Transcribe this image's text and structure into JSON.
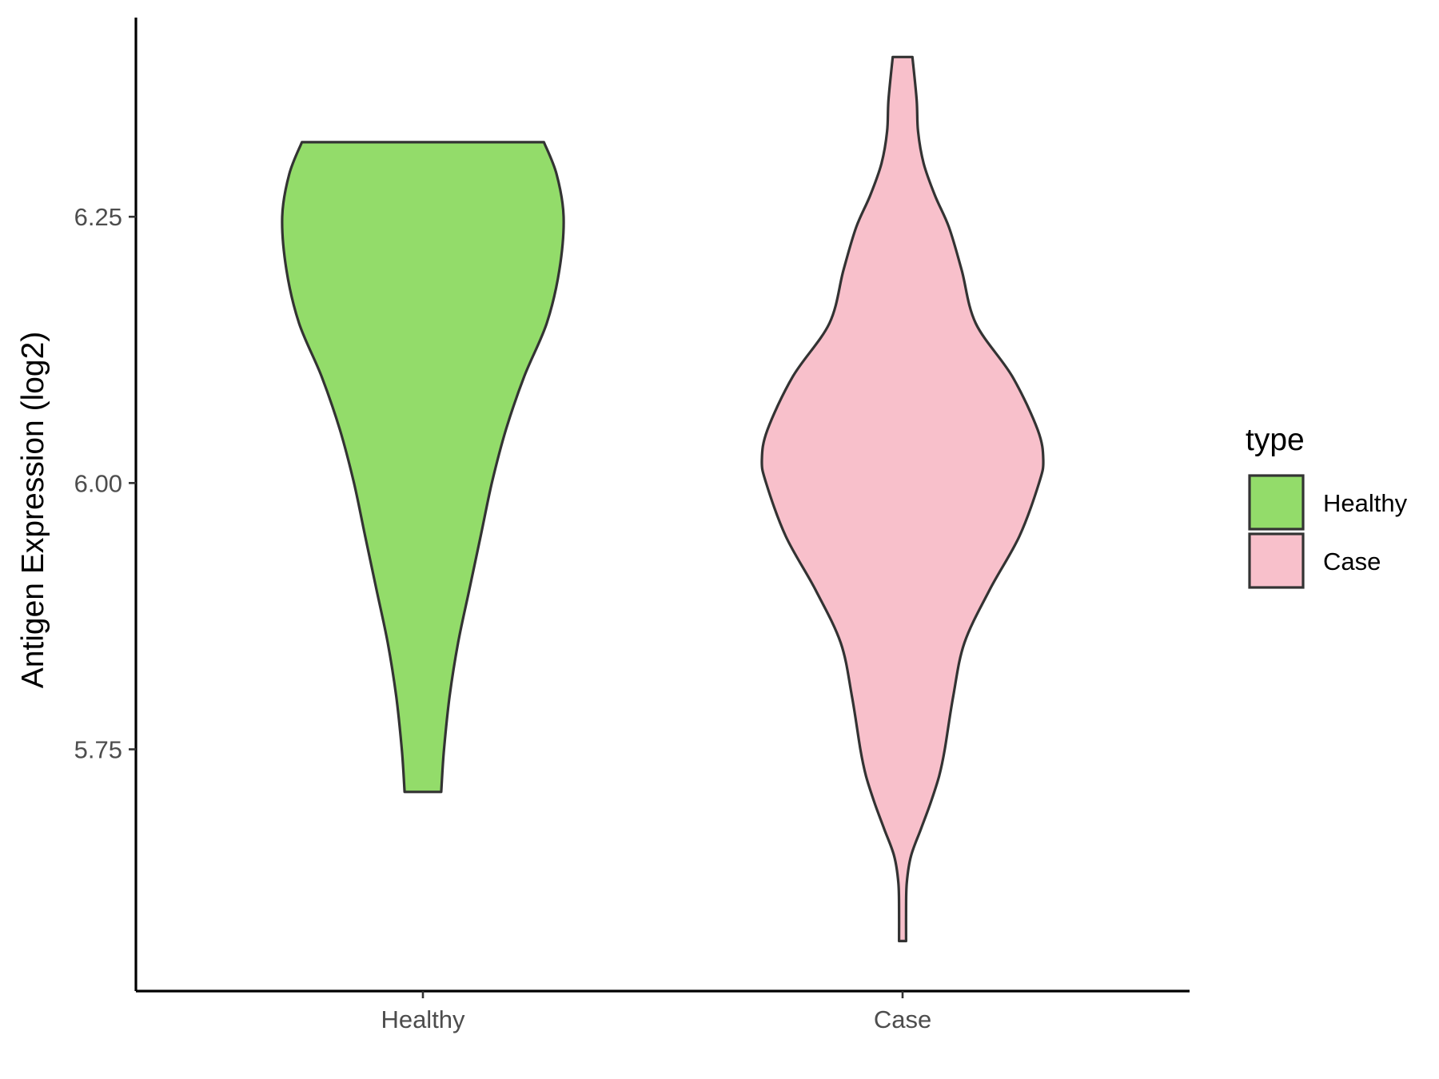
{
  "chart_data": {
    "type": "violin",
    "title": "",
    "xlabel": "",
    "ylabel": "Antigen Expression (log2)",
    "categories": [
      "Healthy",
      "Case"
    ],
    "ylim": [
      5.523,
      6.437
    ],
    "yticks": [
      5.75,
      6.0,
      6.25
    ],
    "ytick_labels": [
      "5.75",
      "6.00",
      "6.25"
    ],
    "grid": false,
    "legend": {
      "title": "type",
      "position": "right",
      "entries": [
        {
          "label": "Healthy",
          "color": "#93DC6A"
        },
        {
          "label": "Case",
          "color": "#F8C0CB"
        }
      ]
    },
    "series": [
      {
        "name": "Healthy",
        "color": "#93DC6A",
        "min": 5.71,
        "max": 6.32,
        "density": [
          [
            5.71,
            0.13
          ],
          [
            5.75,
            0.15
          ],
          [
            5.8,
            0.19
          ],
          [
            5.85,
            0.25
          ],
          [
            5.9,
            0.33
          ],
          [
            5.95,
            0.41
          ],
          [
            6.0,
            0.49
          ],
          [
            6.05,
            0.59
          ],
          [
            6.1,
            0.72
          ],
          [
            6.15,
            0.88
          ],
          [
            6.2,
            0.97
          ],
          [
            6.25,
            1.0
          ],
          [
            6.29,
            0.95
          ],
          [
            6.32,
            0.86
          ]
        ]
      },
      {
        "name": "Case",
        "color": "#F8C0CB",
        "min": 5.57,
        "max": 6.4,
        "density": [
          [
            5.57,
            0.025
          ],
          [
            5.6,
            0.025
          ],
          [
            5.625,
            0.03
          ],
          [
            5.65,
            0.06
          ],
          [
            5.675,
            0.13
          ],
          [
            5.7,
            0.2
          ],
          [
            5.725,
            0.26
          ],
          [
            5.75,
            0.3
          ],
          [
            5.8,
            0.36
          ],
          [
            5.85,
            0.44
          ],
          [
            5.9,
            0.62
          ],
          [
            5.95,
            0.83
          ],
          [
            6.0,
            0.97
          ],
          [
            6.022,
            1.0
          ],
          [
            6.05,
            0.96
          ],
          [
            6.1,
            0.78
          ],
          [
            6.15,
            0.52
          ],
          [
            6.2,
            0.42
          ],
          [
            6.24,
            0.33
          ],
          [
            6.27,
            0.23
          ],
          [
            6.3,
            0.15
          ],
          [
            6.33,
            0.11
          ],
          [
            6.36,
            0.1
          ],
          [
            6.4,
            0.07
          ]
        ]
      }
    ]
  }
}
